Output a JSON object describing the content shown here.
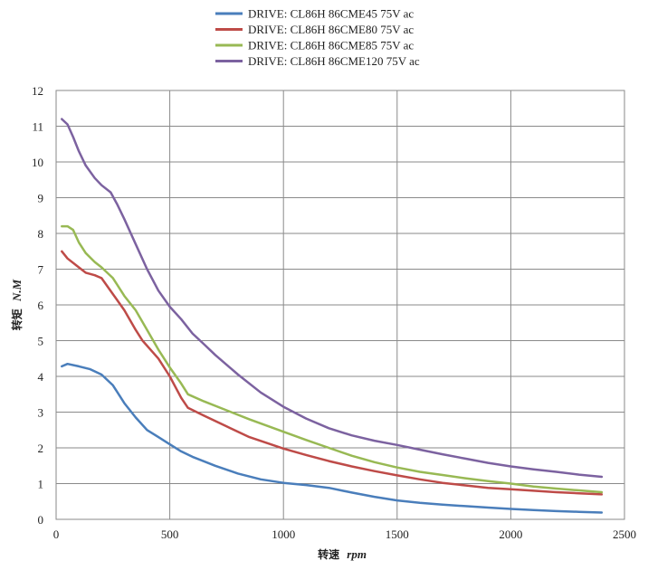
{
  "chart_data": {
    "type": "line",
    "xlabel_main": "转速",
    "xlabel_unit": "rpm",
    "ylabel_main": "转矩",
    "ylabel_unit": "N.M",
    "xlim": [
      0,
      2500
    ],
    "ylim": [
      0,
      12
    ],
    "x_ticks": [
      "0",
      "500",
      "1000",
      "1500",
      "2000",
      "2500"
    ],
    "y_ticks": [
      "0",
      "1",
      "2",
      "3",
      "4",
      "5",
      "6",
      "7",
      "8",
      "9",
      "10",
      "11",
      "12"
    ],
    "grid": true,
    "legend_position": "top",
    "series": [
      {
        "name": "DRIVE: CL86H 86CME45 75V ac",
        "color": "#4a7ebb",
        "points": [
          [
            25,
            4.28
          ],
          [
            50,
            4.35
          ],
          [
            100,
            4.28
          ],
          [
            150,
            4.2
          ],
          [
            200,
            4.05
          ],
          [
            250,
            3.75
          ],
          [
            300,
            3.25
          ],
          [
            350,
            2.85
          ],
          [
            400,
            2.5
          ],
          [
            450,
            2.3
          ],
          [
            500,
            2.1
          ],
          [
            550,
            1.9
          ],
          [
            600,
            1.75
          ],
          [
            700,
            1.5
          ],
          [
            800,
            1.28
          ],
          [
            900,
            1.12
          ],
          [
            1000,
            1.02
          ],
          [
            1100,
            0.96
          ],
          [
            1200,
            0.88
          ],
          [
            1300,
            0.75
          ],
          [
            1400,
            0.63
          ],
          [
            1500,
            0.53
          ],
          [
            1600,
            0.46
          ],
          [
            1700,
            0.41
          ],
          [
            1800,
            0.37
          ],
          [
            1900,
            0.33
          ],
          [
            2000,
            0.29
          ],
          [
            2100,
            0.26
          ],
          [
            2200,
            0.23
          ],
          [
            2300,
            0.21
          ],
          [
            2400,
            0.19
          ]
        ]
      },
      {
        "name": "DRIVE: CL86H 86CME80 75V ac",
        "color": "#be4b48",
        "points": [
          [
            25,
            7.5
          ],
          [
            50,
            7.3
          ],
          [
            100,
            7.05
          ],
          [
            130,
            6.9
          ],
          [
            170,
            6.83
          ],
          [
            200,
            6.75
          ],
          [
            250,
            6.3
          ],
          [
            300,
            5.85
          ],
          [
            350,
            5.3
          ],
          [
            380,
            5.0
          ],
          [
            450,
            4.5
          ],
          [
            500,
            4.0
          ],
          [
            550,
            3.4
          ],
          [
            580,
            3.12
          ],
          [
            650,
            2.9
          ],
          [
            750,
            2.6
          ],
          [
            850,
            2.3
          ],
          [
            1000,
            1.98
          ],
          [
            1100,
            1.8
          ],
          [
            1200,
            1.63
          ],
          [
            1300,
            1.48
          ],
          [
            1400,
            1.35
          ],
          [
            1500,
            1.23
          ],
          [
            1600,
            1.12
          ],
          [
            1700,
            1.02
          ],
          [
            1800,
            0.95
          ],
          [
            1900,
            0.88
          ],
          [
            2000,
            0.84
          ],
          [
            2100,
            0.8
          ],
          [
            2200,
            0.76
          ],
          [
            2300,
            0.73
          ],
          [
            2400,
            0.7
          ]
        ]
      },
      {
        "name": "DRIVE: CL86H 86CME85 75V ac",
        "color": "#98b954",
        "points": [
          [
            25,
            8.2
          ],
          [
            50,
            8.2
          ],
          [
            75,
            8.1
          ],
          [
            100,
            7.75
          ],
          [
            130,
            7.45
          ],
          [
            170,
            7.2
          ],
          [
            200,
            7.05
          ],
          [
            250,
            6.75
          ],
          [
            300,
            6.25
          ],
          [
            350,
            5.85
          ],
          [
            400,
            5.3
          ],
          [
            450,
            4.75
          ],
          [
            500,
            4.25
          ],
          [
            550,
            3.8
          ],
          [
            580,
            3.5
          ],
          [
            650,
            3.3
          ],
          [
            750,
            3.05
          ],
          [
            850,
            2.8
          ],
          [
            1000,
            2.45
          ],
          [
            1100,
            2.22
          ],
          [
            1200,
            2.0
          ],
          [
            1300,
            1.78
          ],
          [
            1400,
            1.6
          ],
          [
            1500,
            1.45
          ],
          [
            1600,
            1.33
          ],
          [
            1700,
            1.24
          ],
          [
            1800,
            1.15
          ],
          [
            1900,
            1.07
          ],
          [
            2000,
            1.0
          ],
          [
            2100,
            0.92
          ],
          [
            2200,
            0.86
          ],
          [
            2300,
            0.81
          ],
          [
            2400,
            0.76
          ]
        ]
      },
      {
        "name": "DRIVE: CL86H 86CME120 75V ac",
        "color": "#7c62a0",
        "points": [
          [
            25,
            11.2
          ],
          [
            50,
            11.05
          ],
          [
            75,
            10.7
          ],
          [
            100,
            10.3
          ],
          [
            130,
            9.9
          ],
          [
            170,
            9.55
          ],
          [
            200,
            9.35
          ],
          [
            240,
            9.15
          ],
          [
            270,
            8.8
          ],
          [
            300,
            8.4
          ],
          [
            350,
            7.7
          ],
          [
            400,
            7.0
          ],
          [
            450,
            6.4
          ],
          [
            500,
            5.95
          ],
          [
            550,
            5.6
          ],
          [
            600,
            5.2
          ],
          [
            650,
            4.9
          ],
          [
            700,
            4.6
          ],
          [
            800,
            4.05
          ],
          [
            900,
            3.55
          ],
          [
            1000,
            3.15
          ],
          [
            1100,
            2.82
          ],
          [
            1200,
            2.55
          ],
          [
            1300,
            2.35
          ],
          [
            1400,
            2.2
          ],
          [
            1500,
            2.08
          ],
          [
            1600,
            1.95
          ],
          [
            1700,
            1.82
          ],
          [
            1800,
            1.7
          ],
          [
            1900,
            1.58
          ],
          [
            2000,
            1.48
          ],
          [
            2100,
            1.4
          ],
          [
            2200,
            1.33
          ],
          [
            2300,
            1.25
          ],
          [
            2400,
            1.19
          ]
        ]
      }
    ]
  }
}
